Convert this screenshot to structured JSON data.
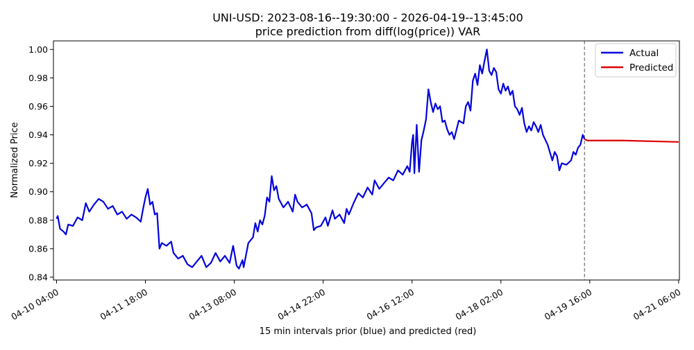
{
  "chart_data": {
    "type": "line",
    "title": "UNI-USD: 2023-08-16--19:30:00 - 2026-04-19--13:45:00",
    "subtitle": "price prediction from diff(log(price)) VAR",
    "xlabel": "15 min intervals prior (blue) and predicted (red)",
    "ylabel": "Normalized Price",
    "ylim": [
      0.838,
      1.006
    ],
    "yticks": [
      "0.84",
      "0.86",
      "0.88",
      "0.90",
      "0.92",
      "0.94",
      "0.96",
      "0.98",
      "1.00"
    ],
    "xticks": [
      "04-10 04:00",
      "04-11 18:00",
      "04-13 08:00",
      "04-14 22:00",
      "04-16 12:00",
      "04-18 02:00",
      "04-19 16:00",
      "04-21 06:00"
    ],
    "xlim": [
      "2026-04-10 02:40",
      "2026-04-21 06:20"
    ],
    "grid": false,
    "legend_position": "top-right",
    "vline": "2026-04-19 13:45",
    "series": [
      {
        "name": "Actual",
        "color": "#0000dd",
        "points": [
          [
            "2026-04-10 04:00",
            0.881
          ],
          [
            "2026-04-10 04:30",
            0.883
          ],
          [
            "2026-04-10 05:30",
            0.874
          ],
          [
            "2026-04-10 07:00",
            0.872
          ],
          [
            "2026-04-10 08:00",
            0.87
          ],
          [
            "2026-04-10 09:00",
            0.877
          ],
          [
            "2026-04-10 11:00",
            0.876
          ],
          [
            "2026-04-10 13:00",
            0.882
          ],
          [
            "2026-04-10 15:00",
            0.88
          ],
          [
            "2026-04-10 16:30",
            0.892
          ],
          [
            "2026-04-10 18:00",
            0.886
          ],
          [
            "2026-04-10 20:00",
            0.891
          ],
          [
            "2026-04-10 22:00",
            0.895
          ],
          [
            "2026-04-11 00:00",
            0.893
          ],
          [
            "2026-04-11 02:00",
            0.888
          ],
          [
            "2026-04-11 04:00",
            0.89
          ],
          [
            "2026-04-11 06:00",
            0.884
          ],
          [
            "2026-04-11 08:00",
            0.886
          ],
          [
            "2026-04-11 10:00",
            0.881
          ],
          [
            "2026-04-11 12:00",
            0.884
          ],
          [
            "2026-04-11 14:00",
            0.882
          ],
          [
            "2026-04-11 16:00",
            0.879
          ],
          [
            "2026-04-11 17:00",
            0.888
          ],
          [
            "2026-04-11 18:00",
            0.896
          ],
          [
            "2026-04-11 19:00",
            0.902
          ],
          [
            "2026-04-11 20:00",
            0.891
          ],
          [
            "2026-04-11 21:00",
            0.893
          ],
          [
            "2026-04-11 22:00",
            0.884
          ],
          [
            "2026-04-11 23:00",
            0.885
          ],
          [
            "2026-04-12 00:00",
            0.86
          ],
          [
            "2026-04-12 01:00",
            0.864
          ],
          [
            "2026-04-12 03:00",
            0.862
          ],
          [
            "2026-04-12 05:00",
            0.865
          ],
          [
            "2026-04-12 06:00",
            0.857
          ],
          [
            "2026-04-12 08:00",
            0.853
          ],
          [
            "2026-04-12 10:00",
            0.855
          ],
          [
            "2026-04-12 12:00",
            0.849
          ],
          [
            "2026-04-12 14:00",
            0.847
          ],
          [
            "2026-04-12 16:00",
            0.851
          ],
          [
            "2026-04-12 18:00",
            0.855
          ],
          [
            "2026-04-12 20:00",
            0.847
          ],
          [
            "2026-04-12 22:00",
            0.85
          ],
          [
            "2026-04-13 00:00",
            0.857
          ],
          [
            "2026-04-13 02:00",
            0.851
          ],
          [
            "2026-04-13 04:00",
            0.855
          ],
          [
            "2026-04-13 06:00",
            0.85
          ],
          [
            "2026-04-13 07:30",
            0.862
          ],
          [
            "2026-04-13 09:00",
            0.848
          ],
          [
            "2026-04-13 10:00",
            0.846
          ],
          [
            "2026-04-13 11:30",
            0.852
          ],
          [
            "2026-04-13 12:00",
            0.847
          ],
          [
            "2026-04-13 14:00",
            0.864
          ],
          [
            "2026-04-13 16:00",
            0.868
          ],
          [
            "2026-04-13 17:00",
            0.878
          ],
          [
            "2026-04-13 18:00",
            0.872
          ],
          [
            "2026-04-13 19:00",
            0.88
          ],
          [
            "2026-04-13 20:00",
            0.877
          ],
          [
            "2026-04-13 21:00",
            0.883
          ],
          [
            "2026-04-13 22:00",
            0.896
          ],
          [
            "2026-04-13 23:00",
            0.893
          ],
          [
            "2026-04-14 00:00",
            0.911
          ],
          [
            "2026-04-14 01:00",
            0.901
          ],
          [
            "2026-04-14 02:00",
            0.904
          ],
          [
            "2026-04-14 03:00",
            0.895
          ],
          [
            "2026-04-14 05:00",
            0.889
          ],
          [
            "2026-04-14 07:00",
            0.893
          ],
          [
            "2026-04-14 09:00",
            0.886
          ],
          [
            "2026-04-14 10:00",
            0.898
          ],
          [
            "2026-04-14 11:00",
            0.893
          ],
          [
            "2026-04-14 13:00",
            0.889
          ],
          [
            "2026-04-14 15:00",
            0.891
          ],
          [
            "2026-04-14 17:00",
            0.885
          ],
          [
            "2026-04-14 18:00",
            0.873
          ],
          [
            "2026-04-14 19:00",
            0.875
          ],
          [
            "2026-04-14 21:00",
            0.876
          ],
          [
            "2026-04-14 23:00",
            0.882
          ],
          [
            "2026-04-15 00:00",
            0.876
          ],
          [
            "2026-04-15 02:00",
            0.887
          ],
          [
            "2026-04-15 03:00",
            0.881
          ],
          [
            "2026-04-15 05:00",
            0.884
          ],
          [
            "2026-04-15 07:00",
            0.878
          ],
          [
            "2026-04-15 08:00",
            0.888
          ],
          [
            "2026-04-15 09:00",
            0.884
          ],
          [
            "2026-04-15 11:00",
            0.892
          ],
          [
            "2026-04-15 13:00",
            0.899
          ],
          [
            "2026-04-15 15:00",
            0.896
          ],
          [
            "2026-04-15 17:00",
            0.903
          ],
          [
            "2026-04-15 19:00",
            0.898
          ],
          [
            "2026-04-15 20:00",
            0.908
          ],
          [
            "2026-04-15 22:00",
            0.902
          ],
          [
            "2026-04-16 00:00",
            0.906
          ],
          [
            "2026-04-16 02:00",
            0.91
          ],
          [
            "2026-04-16 04:00",
            0.908
          ],
          [
            "2026-04-16 06:00",
            0.915
          ],
          [
            "2026-04-16 08:00",
            0.912
          ],
          [
            "2026-04-16 10:00",
            0.918
          ],
          [
            "2026-04-16 11:00",
            0.914
          ],
          [
            "2026-04-16 12:00",
            0.935
          ],
          [
            "2026-04-16 12:30",
            0.94
          ],
          [
            "2026-04-16 13:00",
            0.913
          ],
          [
            "2026-04-16 14:00",
            0.947
          ],
          [
            "2026-04-16 15:00",
            0.914
          ],
          [
            "2026-04-16 16:00",
            0.936
          ],
          [
            "2026-04-16 17:00",
            0.943
          ],
          [
            "2026-04-16 18:00",
            0.951
          ],
          [
            "2026-04-16 19:00",
            0.972
          ],
          [
            "2026-04-16 20:00",
            0.963
          ],
          [
            "2026-04-16 21:00",
            0.956
          ],
          [
            "2026-04-16 22:00",
            0.962
          ],
          [
            "2026-04-16 23:00",
            0.958
          ],
          [
            "2026-04-17 00:00",
            0.96
          ],
          [
            "2026-04-17 01:00",
            0.949
          ],
          [
            "2026-04-17 02:00",
            0.95
          ],
          [
            "2026-04-17 03:00",
            0.944
          ],
          [
            "2026-04-17 04:00",
            0.94
          ],
          [
            "2026-04-17 05:00",
            0.942
          ],
          [
            "2026-04-17 06:00",
            0.937
          ],
          [
            "2026-04-17 08:00",
            0.95
          ],
          [
            "2026-04-17 10:00",
            0.948
          ],
          [
            "2026-04-17 11:00",
            0.96
          ],
          [
            "2026-04-17 12:00",
            0.963
          ],
          [
            "2026-04-17 13:00",
            0.957
          ],
          [
            "2026-04-17 14:00",
            0.978
          ],
          [
            "2026-04-17 15:00",
            0.983
          ],
          [
            "2026-04-17 16:00",
            0.975
          ],
          [
            "2026-04-17 17:00",
            0.989
          ],
          [
            "2026-04-17 18:00",
            0.983
          ],
          [
            "2026-04-17 19:00",
            0.992
          ],
          [
            "2026-04-17 20:00",
            1.0
          ],
          [
            "2026-04-17 21:00",
            0.985
          ],
          [
            "2026-04-17 22:00",
            0.982
          ],
          [
            "2026-04-17 23:00",
            0.987
          ],
          [
            "2026-04-18 00:00",
            0.984
          ],
          [
            "2026-04-18 01:00",
            0.972
          ],
          [
            "2026-04-18 02:00",
            0.969
          ],
          [
            "2026-04-18 03:00",
            0.976
          ],
          [
            "2026-04-18 04:00",
            0.971
          ],
          [
            "2026-04-18 05:00",
            0.974
          ],
          [
            "2026-04-18 06:00",
            0.968
          ],
          [
            "2026-04-18 07:00",
            0.971
          ],
          [
            "2026-04-18 08:00",
            0.96
          ],
          [
            "2026-04-18 09:00",
            0.958
          ],
          [
            "2026-04-18 10:00",
            0.954
          ],
          [
            "2026-04-18 11:00",
            0.959
          ],
          [
            "2026-04-18 12:00",
            0.948
          ],
          [
            "2026-04-18 13:00",
            0.942
          ],
          [
            "2026-04-18 14:00",
            0.946
          ],
          [
            "2026-04-18 15:00",
            0.943
          ],
          [
            "2026-04-18 16:00",
            0.949
          ],
          [
            "2026-04-18 17:00",
            0.946
          ],
          [
            "2026-04-18 18:00",
            0.942
          ],
          [
            "2026-04-18 19:00",
            0.947
          ],
          [
            "2026-04-18 20:00",
            0.94
          ],
          [
            "2026-04-18 22:00",
            0.933
          ],
          [
            "2026-04-19 00:00",
            0.922
          ],
          [
            "2026-04-19 01:00",
            0.928
          ],
          [
            "2026-04-19 02:00",
            0.925
          ],
          [
            "2026-04-19 03:00",
            0.915
          ],
          [
            "2026-04-19 04:00",
            0.92
          ],
          [
            "2026-04-19 06:00",
            0.919
          ],
          [
            "2026-04-19 08:00",
            0.922
          ],
          [
            "2026-04-19 09:00",
            0.928
          ],
          [
            "2026-04-19 10:00",
            0.926
          ],
          [
            "2026-04-19 11:00",
            0.931
          ],
          [
            "2026-04-19 12:00",
            0.933
          ],
          [
            "2026-04-19 13:00",
            0.94
          ],
          [
            "2026-04-19 13:45",
            0.937
          ]
        ]
      },
      {
        "name": "Predicted",
        "color": "#dd0000",
        "points": [
          [
            "2026-04-19 13:45",
            0.937
          ],
          [
            "2026-04-19 15:00",
            0.936
          ],
          [
            "2026-04-20 06:00",
            0.936
          ],
          [
            "2026-04-21 06:00",
            0.935
          ]
        ]
      }
    ]
  }
}
